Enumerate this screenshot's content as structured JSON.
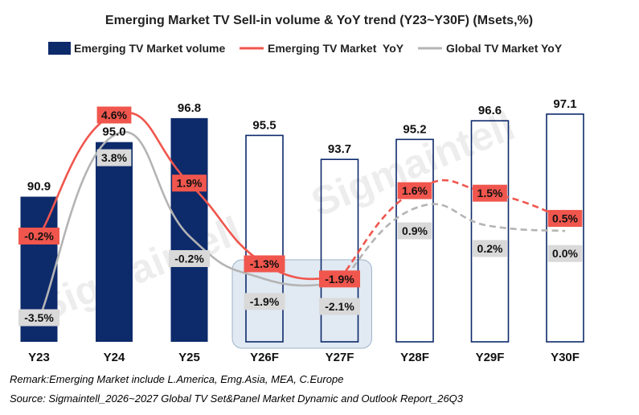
{
  "chart_data": {
    "type": "bar",
    "title": "Emerging Market TV Sell-in volume & YoY trend (Y23~Y30F) (Msets,%)",
    "categories": [
      "Y23",
      "Y24",
      "Y25",
      "Y26F",
      "Y27F",
      "Y28F",
      "Y29F",
      "Y30F"
    ],
    "series": [
      {
        "name": "Emerging TV Market volume",
        "kind": "bar",
        "values": [
          90.9,
          95.0,
          96.8,
          95.5,
          93.7,
          95.2,
          96.6,
          97.1
        ],
        "labels": [
          "90.9",
          "95.0",
          "96.8",
          "95.5",
          "93.7",
          "95.2",
          "96.6",
          "97.1"
        ],
        "forecast_from_index": 3,
        "color": "#0d2a6b"
      },
      {
        "name": "Emerging TV Market  YoY",
        "kind": "line",
        "values": [
          -0.2,
          4.6,
          1.9,
          -1.3,
          -1.9,
          1.6,
          1.5,
          0.5
        ],
        "labels": [
          "-0.2%",
          "4.6%",
          "1.9%",
          "-1.3%",
          "-1.9%",
          "1.6%",
          "1.5%",
          "0.5%"
        ],
        "dashed_from_index": 4,
        "color": "#f0564d"
      },
      {
        "name": "Global TV Market YoY",
        "kind": "line",
        "values": [
          -3.5,
          3.8,
          -0.2,
          -1.9,
          -2.1,
          0.9,
          0.2,
          0.0
        ],
        "labels": [
          "-3.5%",
          "3.8%",
          "-0.2%",
          "-1.9%",
          "-2.1%",
          "0.9%",
          "0.2%",
          "0.0%"
        ],
        "dashed_from_index": 4,
        "color": "#b4b4b4"
      }
    ],
    "legend_position": "top",
    "grid": false,
    "highlight_categories": [
      "Y26F",
      "Y27F"
    ],
    "watermark": "Sigmaintell"
  },
  "notes": {
    "remark": "Remark:Emerging Market include  L.America, Emg.Asia, MEA, C.Europe",
    "source": "Source: Sigmaintell_2026~2027 Global TV Set&Panel Market Dynamic and Outlook Report_26Q3"
  }
}
